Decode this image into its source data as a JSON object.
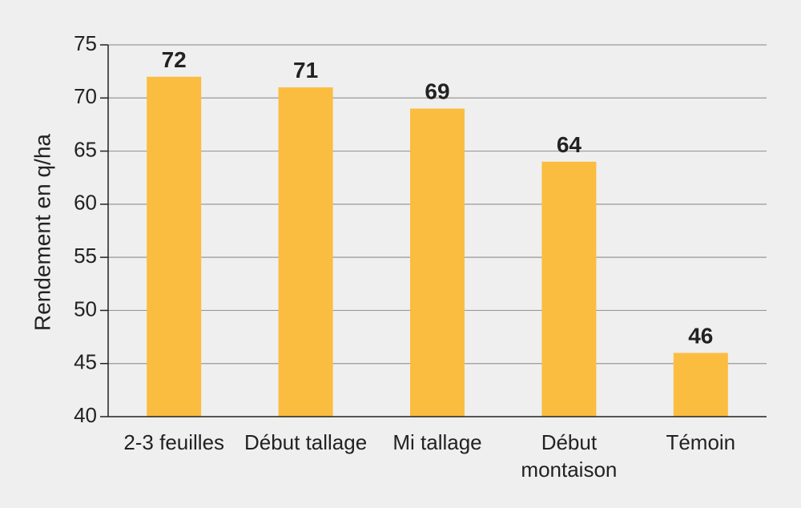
{
  "chart_data": {
    "type": "bar",
    "y_label": "Rendement en q/ha",
    "categories": [
      "2-3 feuilles",
      "Début tallage",
      "Mi tallage",
      "Début montaison",
      "Témoin"
    ],
    "values": [
      72,
      71,
      69,
      64,
      46
    ],
    "color": "#fbbd40",
    "ylim": [
      40,
      75
    ],
    "yticks": [
      40,
      45,
      50,
      55,
      60,
      65,
      70,
      75
    ],
    "grid": true
  }
}
